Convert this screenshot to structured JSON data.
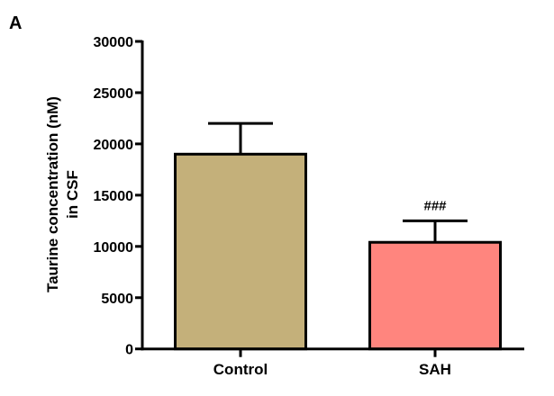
{
  "panel_label": "A",
  "chart_data": {
    "type": "bar",
    "title": "",
    "xlabel": "",
    "ylabel_lines": [
      "Taurine concentration (nM)",
      "in CSF"
    ],
    "categories": [
      "Control",
      "SAH"
    ],
    "values": [
      19000,
      10400
    ],
    "error_upper": [
      22000,
      12500
    ],
    "colors": [
      "#c4b07a",
      "#ff857e"
    ],
    "annotations": [
      "",
      "###"
    ],
    "ylim": [
      0,
      30000
    ],
    "yticks": [
      0,
      5000,
      10000,
      15000,
      20000,
      25000,
      30000
    ],
    "grid": false
  }
}
